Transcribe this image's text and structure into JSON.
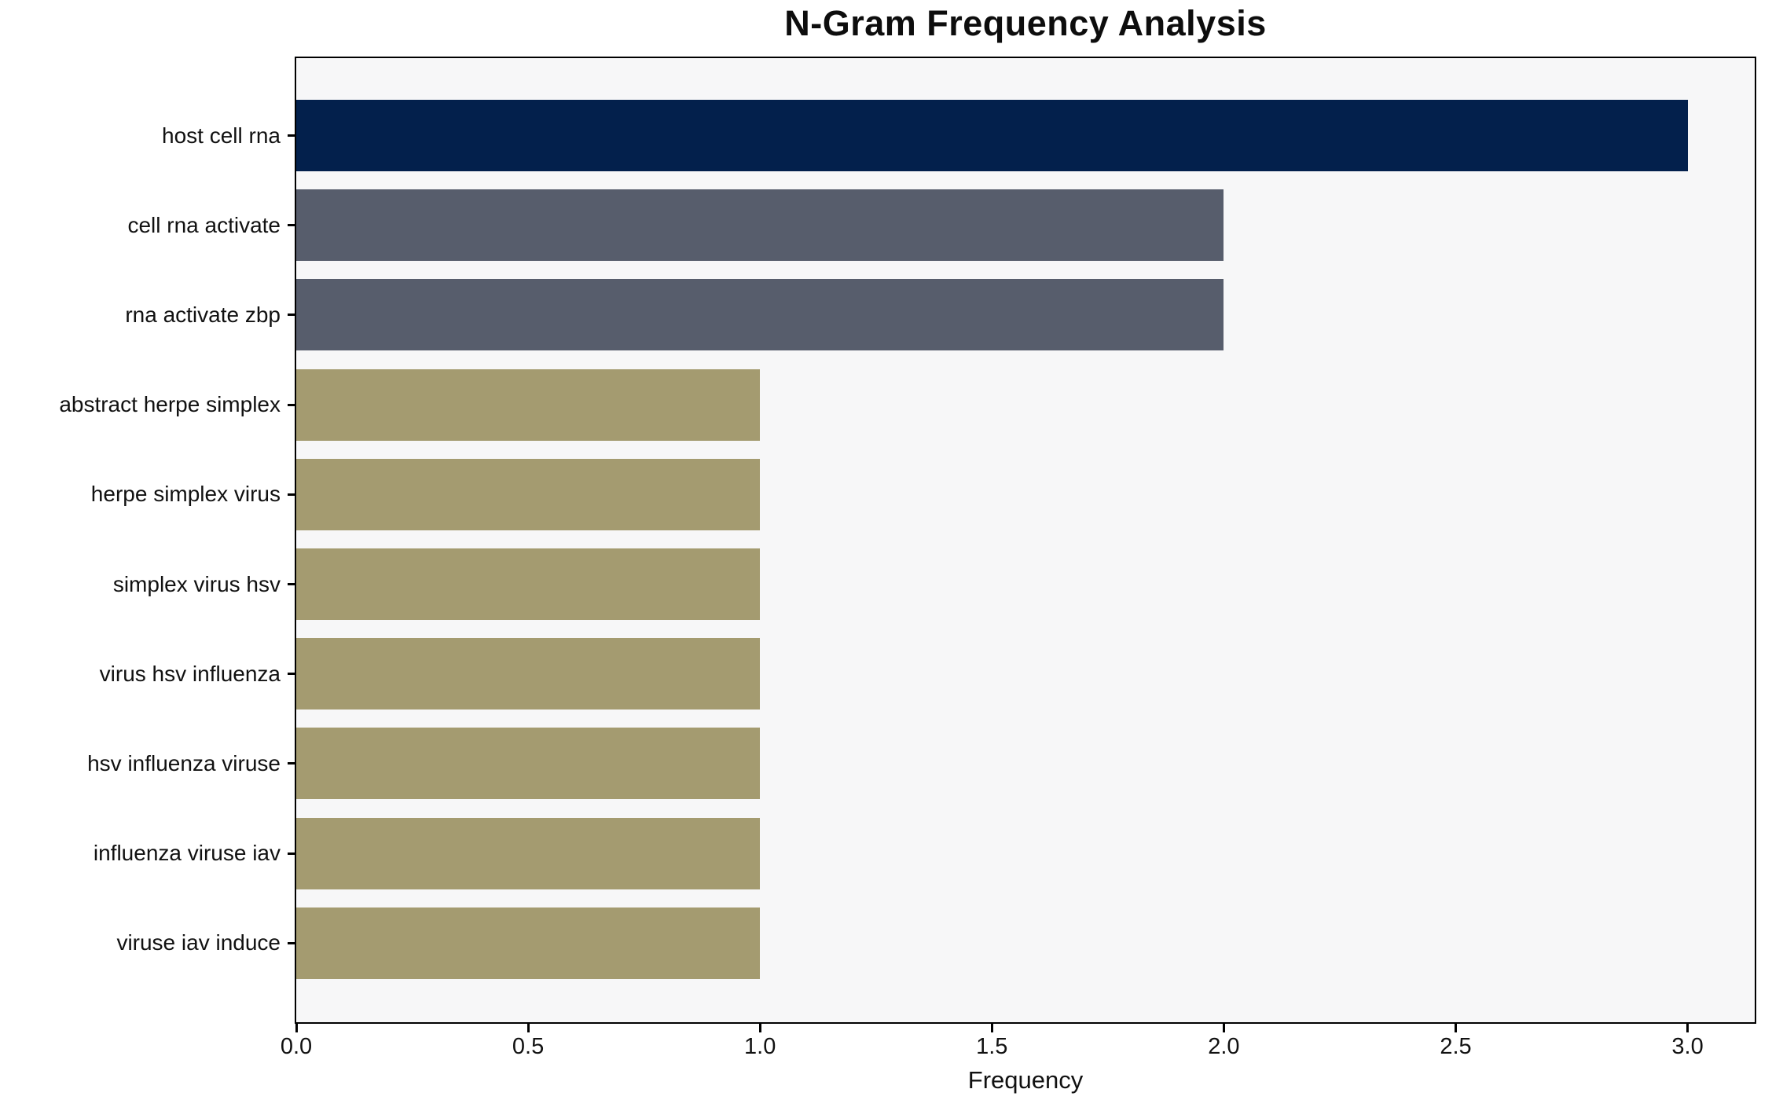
{
  "chart_data": {
    "type": "bar",
    "orientation": "horizontal",
    "title": "N-Gram Frequency Analysis",
    "xlabel": "Frequency",
    "ylabel": "",
    "categories": [
      "host cell rna",
      "cell rna activate",
      "rna activate zbp",
      "abstract herpe simplex",
      "herpe simplex virus",
      "simplex virus hsv",
      "virus hsv influenza",
      "hsv influenza viruse",
      "influenza viruse iav",
      "viruse iav induce"
    ],
    "values": [
      3,
      2,
      2,
      1,
      1,
      1,
      1,
      1,
      1,
      1
    ],
    "bar_colors": [
      "#03204c",
      "#575d6c",
      "#575d6c",
      "#a49b70",
      "#a49b70",
      "#a49b70",
      "#a49b70",
      "#a49b70",
      "#a49b70",
      "#a49b70"
    ],
    "x_tick_labels": [
      "0.0",
      "0.5",
      "1.0",
      "1.5",
      "2.0",
      "2.5",
      "3.0"
    ],
    "x_ticks": [
      0.0,
      0.5,
      1.0,
      1.5,
      2.0,
      2.5,
      3.0
    ],
    "xlim": [
      0,
      3.1447
    ],
    "grid": false,
    "legend": null,
    "plot_background": "#f7f7f8",
    "figure_background": "#ffffff",
    "spine_color": "#000000"
  }
}
